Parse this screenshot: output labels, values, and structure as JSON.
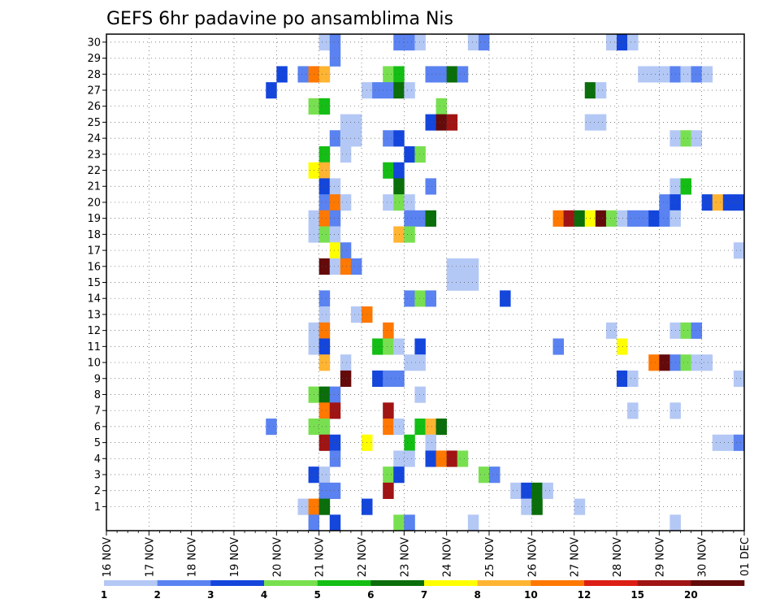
{
  "chart_data": {
    "type": "heatmap",
    "title": "GEFS 6hr padavine po ansamblima Nis",
    "xlabel": "",
    "ylabel": "",
    "x_start": "16 NOV",
    "x_end": "01 DEC",
    "x_ticks": [
      "16 NOV",
      "17 NOV",
      "18 NOV",
      "19 NOV",
      "20 NOV",
      "21 NOV",
      "22 NOV",
      "23 NOV",
      "24 NOV",
      "25 NOV",
      "26 NOV",
      "27 NOV",
      "28 NOV",
      "29 NOV",
      "30 NOV",
      "01 DEC"
    ],
    "ylim": [
      0,
      30
    ],
    "y_ticks": [
      1,
      2,
      3,
      4,
      5,
      6,
      7,
      8,
      9,
      10,
      11,
      12,
      13,
      14,
      15,
      16,
      17,
      18,
      19,
      20,
      21,
      22,
      23,
      24,
      25,
      26,
      27,
      28,
      29,
      30
    ],
    "grid": true,
    "colorbar": {
      "labels": [
        "1",
        "2",
        "3",
        "4",
        "5",
        "6",
        "7",
        "8",
        "10",
        "12",
        "15",
        "20"
      ],
      "colors": [
        "#b4c8f5",
        "#5a82f0",
        "#1446dc",
        "#78e050",
        "#14be14",
        "#0a6e0a",
        "#ffff00",
        "#ffb432",
        "#ff7800",
        "#dc1e14",
        "#a01414",
        "#640a0a"
      ]
    },
    "cells": [
      {
        "x": "21 NOV 00Z",
        "y": 30,
        "v": 1
      },
      {
        "x": "21 NOV 06Z",
        "y": 30,
        "v": 2
      },
      {
        "x": "22 NOV 18Z",
        "y": 30,
        "v": 2
      },
      {
        "x": "23 NOV 00Z",
        "y": 30,
        "v": 2
      },
      {
        "x": "23 NOV 06Z",
        "y": 30,
        "v": 1
      },
      {
        "x": "24 NOV 12Z",
        "y": 30,
        "v": 1
      },
      {
        "x": "24 NOV 18Z",
        "y": 30,
        "v": 2
      },
      {
        "x": "27 NOV 18Z",
        "y": 30,
        "v": 1
      },
      {
        "x": "28 NOV 00Z",
        "y": 30,
        "v": 3
      },
      {
        "x": "28 NOV 06Z",
        "y": 30,
        "v": 1
      },
      {
        "x": "21 NOV 06Z",
        "y": 29,
        "v": 2
      },
      {
        "x": "20 NOV 00Z",
        "y": 28,
        "v": 3
      },
      {
        "x": "20 NOV 12Z",
        "y": 28,
        "v": 2
      },
      {
        "x": "20 NOV 18Z",
        "y": 28,
        "v": 10
      },
      {
        "x": "21 NOV 00Z",
        "y": 28,
        "v": 8
      },
      {
        "x": "22 NOV 12Z",
        "y": 28,
        "v": 4
      },
      {
        "x": "22 NOV 18Z",
        "y": 28,
        "v": 5
      },
      {
        "x": "23 NOV 12Z",
        "y": 28,
        "v": 2
      },
      {
        "x": "23 NOV 18Z",
        "y": 28,
        "v": 2
      },
      {
        "x": "24 NOV 00Z",
        "y": 28,
        "v": 6
      },
      {
        "x": "24 NOV 06Z",
        "y": 28,
        "v": 2
      },
      {
        "x": "28 NOV 12Z",
        "y": 28,
        "v": 1
      },
      {
        "x": "28 NOV 18Z",
        "y": 28,
        "v": 1
      },
      {
        "x": "29 NOV 00Z",
        "y": 28,
        "v": 1
      },
      {
        "x": "29 NOV 06Z",
        "y": 28,
        "v": 2
      },
      {
        "x": "29 NOV 12Z",
        "y": 28,
        "v": 1
      },
      {
        "x": "29 NOV 18Z",
        "y": 28,
        "v": 2
      },
      {
        "x": "30 NOV 00Z",
        "y": 28,
        "v": 1
      },
      {
        "x": "19 NOV 18Z",
        "y": 27,
        "v": 3
      },
      {
        "x": "22 NOV 00Z",
        "y": 27,
        "v": 1
      },
      {
        "x": "22 NOV 06Z",
        "y": 27,
        "v": 2
      },
      {
        "x": "22 NOV 12Z",
        "y": 27,
        "v": 2
      },
      {
        "x": "22 NOV 18Z",
        "y": 27,
        "v": 6
      },
      {
        "x": "23 NOV 00Z",
        "y": 27,
        "v": 1
      },
      {
        "x": "27 NOV 06Z",
        "y": 27,
        "v": 6
      },
      {
        "x": "27 NOV 12Z",
        "y": 27,
        "v": 1
      },
      {
        "x": "20 NOV 18Z",
        "y": 26,
        "v": 4
      },
      {
        "x": "21 NOV 00Z",
        "y": 26,
        "v": 5
      },
      {
        "x": "23 NOV 18Z",
        "y": 26,
        "v": 4
      },
      {
        "x": "21 NOV 12Z",
        "y": 25,
        "v": 1
      },
      {
        "x": "21 NOV 18Z",
        "y": 25,
        "v": 1
      },
      {
        "x": "23 NOV 12Z",
        "y": 25,
        "v": 3
      },
      {
        "x": "23 NOV 18Z",
        "y": 25,
        "v": 20
      },
      {
        "x": "24 NOV 00Z",
        "y": 25,
        "v": 15
      },
      {
        "x": "27 NOV 06Z",
        "y": 25,
        "v": 1
      },
      {
        "x": "27 NOV 12Z",
        "y": 25,
        "v": 1
      },
      {
        "x": "21 NOV 06Z",
        "y": 24,
        "v": 2
      },
      {
        "x": "21 NOV 12Z",
        "y": 24,
        "v": 1
      },
      {
        "x": "21 NOV 18Z",
        "y": 24,
        "v": 1
      },
      {
        "x": "22 NOV 12Z",
        "y": 24,
        "v": 2
      },
      {
        "x": "22 NOV 18Z",
        "y": 24,
        "v": 3
      },
      {
        "x": "29 NOV 06Z",
        "y": 24,
        "v": 1
      },
      {
        "x": "29 NOV 12Z",
        "y": 24,
        "v": 4
      },
      {
        "x": "29 NOV 18Z",
        "y": 24,
        "v": 1
      },
      {
        "x": "21 NOV 00Z",
        "y": 23,
        "v": 5
      },
      {
        "x": "21 NOV 12Z",
        "y": 23,
        "v": 1
      },
      {
        "x": "23 NOV 00Z",
        "y": 23,
        "v": 3
      },
      {
        "x": "23 NOV 06Z",
        "y": 23,
        "v": 4
      },
      {
        "x": "20 NOV 18Z",
        "y": 22,
        "v": 7
      },
      {
        "x": "21 NOV 00Z",
        "y": 22,
        "v": 8
      },
      {
        "x": "22 NOV 12Z",
        "y": 22,
        "v": 5
      },
      {
        "x": "22 NOV 18Z",
        "y": 22,
        "v": 3
      },
      {
        "x": "21 NOV 00Z",
        "y": 21,
        "v": 3
      },
      {
        "x": "21 NOV 06Z",
        "y": 21,
        "v": 1
      },
      {
        "x": "22 NOV 18Z",
        "y": 21,
        "v": 6
      },
      {
        "x": "23 NOV 12Z",
        "y": 21,
        "v": 2
      },
      {
        "x": "29 NOV 06Z",
        "y": 21,
        "v": 1
      },
      {
        "x": "29 NOV 12Z",
        "y": 21,
        "v": 5
      },
      {
        "x": "21 NOV 00Z",
        "y": 20,
        "v": 2
      },
      {
        "x": "21 NOV 06Z",
        "y": 20,
        "v": 10
      },
      {
        "x": "21 NOV 12Z",
        "y": 20,
        "v": 1
      },
      {
        "x": "22 NOV 12Z",
        "y": 20,
        "v": 1
      },
      {
        "x": "22 NOV 18Z",
        "y": 20,
        "v": 4
      },
      {
        "x": "23 NOV 00Z",
        "y": 20,
        "v": 1
      },
      {
        "x": "29 NOV 00Z",
        "y": 20,
        "v": 2
      },
      {
        "x": "29 NOV 06Z",
        "y": 20,
        "v": 3
      },
      {
        "x": "30 NOV 00Z",
        "y": 20,
        "v": 3
      },
      {
        "x": "30 NOV 06Z",
        "y": 20,
        "v": 8
      },
      {
        "x": "30 NOV 12Z",
        "y": 20,
        "v": 3
      },
      {
        "x": "30 NOV 18Z",
        "y": 20,
        "v": 3
      },
      {
        "x": "20 NOV 18Z",
        "y": 19,
        "v": 1
      },
      {
        "x": "21 NOV 00Z",
        "y": 19,
        "v": 10
      },
      {
        "x": "21 NOV 06Z",
        "y": 19,
        "v": 2
      },
      {
        "x": "23 NOV 00Z",
        "y": 19,
        "v": 2
      },
      {
        "x": "23 NOV 06Z",
        "y": 19,
        "v": 2
      },
      {
        "x": "23 NOV 12Z",
        "y": 19,
        "v": 6
      },
      {
        "x": "26 NOV 12Z",
        "y": 19,
        "v": 10
      },
      {
        "x": "26 NOV 18Z",
        "y": 19,
        "v": 15
      },
      {
        "x": "27 NOV 00Z",
        "y": 19,
        "v": 6
      },
      {
        "x": "27 NOV 06Z",
        "y": 19,
        "v": 7
      },
      {
        "x": "27 NOV 12Z",
        "y": 19,
        "v": 20
      },
      {
        "x": "27 NOV 18Z",
        "y": 19,
        "v": 4
      },
      {
        "x": "28 NOV 00Z",
        "y": 19,
        "v": 1
      },
      {
        "x": "28 NOV 06Z",
        "y": 19,
        "v": 2
      },
      {
        "x": "28 NOV 12Z",
        "y": 19,
        "v": 2
      },
      {
        "x": "28 NOV 18Z",
        "y": 19,
        "v": 3
      },
      {
        "x": "29 NOV 00Z",
        "y": 19,
        "v": 2
      },
      {
        "x": "29 NOV 06Z",
        "y": 19,
        "v": 1
      },
      {
        "x": "20 NOV 18Z",
        "y": 18,
        "v": 1
      },
      {
        "x": "21 NOV 00Z",
        "y": 18,
        "v": 4
      },
      {
        "x": "21 NOV 06Z",
        "y": 18,
        "v": 1
      },
      {
        "x": "22 NOV 18Z",
        "y": 18,
        "v": 8
      },
      {
        "x": "23 NOV 00Z",
        "y": 18,
        "v": 4
      },
      {
        "x": "21 NOV 06Z",
        "y": 17,
        "v": 7
      },
      {
        "x": "21 NOV 12Z",
        "y": 17,
        "v": 2
      },
      {
        "x": "30 NOV 18Z",
        "y": 17,
        "v": 1
      },
      {
        "x": "21 NOV 00Z",
        "y": 16,
        "v": 20
      },
      {
        "x": "21 NOV 06Z",
        "y": 16,
        "v": 1
      },
      {
        "x": "21 NOV 12Z",
        "y": 16,
        "v": 10
      },
      {
        "x": "21 NOV 18Z",
        "y": 16,
        "v": 2
      },
      {
        "x": "24 NOV 00Z",
        "y": 16,
        "v": 1
      },
      {
        "x": "24 NOV 06Z",
        "y": 16,
        "v": 1
      },
      {
        "x": "24 NOV 12Z",
        "y": 16,
        "v": 1
      },
      {
        "x": "24 NOV 00Z",
        "y": 15,
        "v": 1
      },
      {
        "x": "24 NOV 06Z",
        "y": 15,
        "v": 1
      },
      {
        "x": "24 NOV 12Z",
        "y": 15,
        "v": 1
      },
      {
        "x": "21 NOV 00Z",
        "y": 14,
        "v": 2
      },
      {
        "x": "23 NOV 00Z",
        "y": 14,
        "v": 2
      },
      {
        "x": "23 NOV 06Z",
        "y": 14,
        "v": 4
      },
      {
        "x": "23 NOV 12Z",
        "y": 14,
        "v": 2
      },
      {
        "x": "25 NOV 06Z",
        "y": 14,
        "v": 3
      },
      {
        "x": "21 NOV 00Z",
        "y": 13,
        "v": 1
      },
      {
        "x": "21 NOV 18Z",
        "y": 13,
        "v": 1
      },
      {
        "x": "22 NOV 00Z",
        "y": 13,
        "v": 10
      },
      {
        "x": "20 NOV 18Z",
        "y": 12,
        "v": 1
      },
      {
        "x": "21 NOV 00Z",
        "y": 12,
        "v": 10
      },
      {
        "x": "22 NOV 12Z",
        "y": 12,
        "v": 10
      },
      {
        "x": "27 NOV 18Z",
        "y": 12,
        "v": 1
      },
      {
        "x": "29 NOV 06Z",
        "y": 12,
        "v": 1
      },
      {
        "x": "29 NOV 12Z",
        "y": 12,
        "v": 4
      },
      {
        "x": "29 NOV 18Z",
        "y": 12,
        "v": 2
      },
      {
        "x": "20 NOV 18Z",
        "y": 11,
        "v": 1
      },
      {
        "x": "21 NOV 00Z",
        "y": 11,
        "v": 3
      },
      {
        "x": "22 NOV 06Z",
        "y": 11,
        "v": 5
      },
      {
        "x": "22 NOV 12Z",
        "y": 11,
        "v": 4
      },
      {
        "x": "22 NOV 18Z",
        "y": 11,
        "v": 1
      },
      {
        "x": "23 NOV 06Z",
        "y": 11,
        "v": 3
      },
      {
        "x": "26 NOV 12Z",
        "y": 11,
        "v": 2
      },
      {
        "x": "28 NOV 00Z",
        "y": 11,
        "v": 7
      },
      {
        "x": "21 NOV 00Z",
        "y": 10,
        "v": 8
      },
      {
        "x": "21 NOV 12Z",
        "y": 10,
        "v": 1
      },
      {
        "x": "23 NOV 00Z",
        "y": 10,
        "v": 1
      },
      {
        "x": "23 NOV 06Z",
        "y": 10,
        "v": 1
      },
      {
        "x": "28 NOV 18Z",
        "y": 10,
        "v": 10
      },
      {
        "x": "29 NOV 00Z",
        "y": 10,
        "v": 20
      },
      {
        "x": "29 NOV 06Z",
        "y": 10,
        "v": 2
      },
      {
        "x": "29 NOV 12Z",
        "y": 10,
        "v": 4
      },
      {
        "x": "29 NOV 18Z",
        "y": 10,
        "v": 1
      },
      {
        "x": "30 NOV 00Z",
        "y": 10,
        "v": 1
      },
      {
        "x": "21 NOV 12Z",
        "y": 9,
        "v": 20
      },
      {
        "x": "22 NOV 06Z",
        "y": 9,
        "v": 3
      },
      {
        "x": "22 NOV 12Z",
        "y": 9,
        "v": 2
      },
      {
        "x": "22 NOV 18Z",
        "y": 9,
        "v": 2
      },
      {
        "x": "28 NOV 00Z",
        "y": 9,
        "v": 3
      },
      {
        "x": "28 NOV 06Z",
        "y": 9,
        "v": 1
      },
      {
        "x": "30 NOV 18Z",
        "y": 9,
        "v": 1
      },
      {
        "x": "20 NOV 18Z",
        "y": 8,
        "v": 4
      },
      {
        "x": "21 NOV 00Z",
        "y": 8,
        "v": 6
      },
      {
        "x": "21 NOV 06Z",
        "y": 8,
        "v": 2
      },
      {
        "x": "23 NOV 06Z",
        "y": 8,
        "v": 1
      },
      {
        "x": "21 NOV 00Z",
        "y": 7,
        "v": 10
      },
      {
        "x": "21 NOV 06Z",
        "y": 7,
        "v": 15
      },
      {
        "x": "22 NOV 12Z",
        "y": 7,
        "v": 15
      },
      {
        "x": "28 NOV 06Z",
        "y": 7,
        "v": 1
      },
      {
        "x": "29 NOV 06Z",
        "y": 7,
        "v": 1
      },
      {
        "x": "19 NOV 18Z",
        "y": 6,
        "v": 2
      },
      {
        "x": "20 NOV 18Z",
        "y": 6,
        "v": 4
      },
      {
        "x": "21 NOV 00Z",
        "y": 6,
        "v": 4
      },
      {
        "x": "22 NOV 12Z",
        "y": 6,
        "v": 10
      },
      {
        "x": "22 NOV 18Z",
        "y": 6,
        "v": 1
      },
      {
        "x": "23 NOV 06Z",
        "y": 6,
        "v": 5
      },
      {
        "x": "23 NOV 12Z",
        "y": 6,
        "v": 8
      },
      {
        "x": "23 NOV 18Z",
        "y": 6,
        "v": 6
      },
      {
        "x": "21 NOV 00Z",
        "y": 5,
        "v": 15
      },
      {
        "x": "21 NOV 06Z",
        "y": 5,
        "v": 3
      },
      {
        "x": "22 NOV 00Z",
        "y": 5,
        "v": 7
      },
      {
        "x": "23 NOV 00Z",
        "y": 5,
        "v": 5
      },
      {
        "x": "23 NOV 12Z",
        "y": 5,
        "v": 1
      },
      {
        "x": "30 NOV 06Z",
        "y": 5,
        "v": 1
      },
      {
        "x": "30 NOV 12Z",
        "y": 5,
        "v": 1
      },
      {
        "x": "30 NOV 18Z",
        "y": 5,
        "v": 2
      },
      {
        "x": "21 NOV 06Z",
        "y": 4,
        "v": 2
      },
      {
        "x": "22 NOV 18Z",
        "y": 4,
        "v": 1
      },
      {
        "x": "23 NOV 00Z",
        "y": 4,
        "v": 1
      },
      {
        "x": "23 NOV 12Z",
        "y": 4,
        "v": 3
      },
      {
        "x": "23 NOV 18Z",
        "y": 4,
        "v": 10
      },
      {
        "x": "24 NOV 00Z",
        "y": 4,
        "v": 15
      },
      {
        "x": "24 NOV 06Z",
        "y": 4,
        "v": 4
      },
      {
        "x": "20 NOV 18Z",
        "y": 3,
        "v": 3
      },
      {
        "x": "21 NOV 00Z",
        "y": 3,
        "v": 1
      },
      {
        "x": "22 NOV 12Z",
        "y": 3,
        "v": 4
      },
      {
        "x": "22 NOV 18Z",
        "y": 3,
        "v": 3
      },
      {
        "x": "24 NOV 18Z",
        "y": 3,
        "v": 4
      },
      {
        "x": "25 NOV 00Z",
        "y": 3,
        "v": 2
      },
      {
        "x": "21 NOV 00Z",
        "y": 2,
        "v": 2
      },
      {
        "x": "21 NOV 06Z",
        "y": 2,
        "v": 2
      },
      {
        "x": "22 NOV 12Z",
        "y": 2,
        "v": 15
      },
      {
        "x": "25 NOV 12Z",
        "y": 2,
        "v": 1
      },
      {
        "x": "25 NOV 18Z",
        "y": 2,
        "v": 3
      },
      {
        "x": "26 NOV 00Z",
        "y": 2,
        "v": 6
      },
      {
        "x": "26 NOV 06Z",
        "y": 2,
        "v": 1
      },
      {
        "x": "20 NOV 12Z",
        "y": 1,
        "v": 1
      },
      {
        "x": "20 NOV 18Z",
        "y": 1,
        "v": 10
      },
      {
        "x": "21 NOV 00Z",
        "y": 1,
        "v": 6
      },
      {
        "x": "22 NOV 00Z",
        "y": 1,
        "v": 3
      },
      {
        "x": "25 NOV 18Z",
        "y": 1,
        "v": 1
      },
      {
        "x": "26 NOV 00Z",
        "y": 1,
        "v": 6
      },
      {
        "x": "27 NOV 00Z",
        "y": 1,
        "v": 1
      },
      {
        "x": "20 NOV 18Z",
        "y": 0,
        "v": 2
      },
      {
        "x": "21 NOV 06Z",
        "y": 0,
        "v": 3
      },
      {
        "x": "22 NOV 18Z",
        "y": 0,
        "v": 4
      },
      {
        "x": "23 NOV 00Z",
        "y": 0,
        "v": 2
      },
      {
        "x": "24 NOV 12Z",
        "y": 0,
        "v": 1
      },
      {
        "x": "29 NOV 06Z",
        "y": 0,
        "v": 1
      }
    ]
  }
}
